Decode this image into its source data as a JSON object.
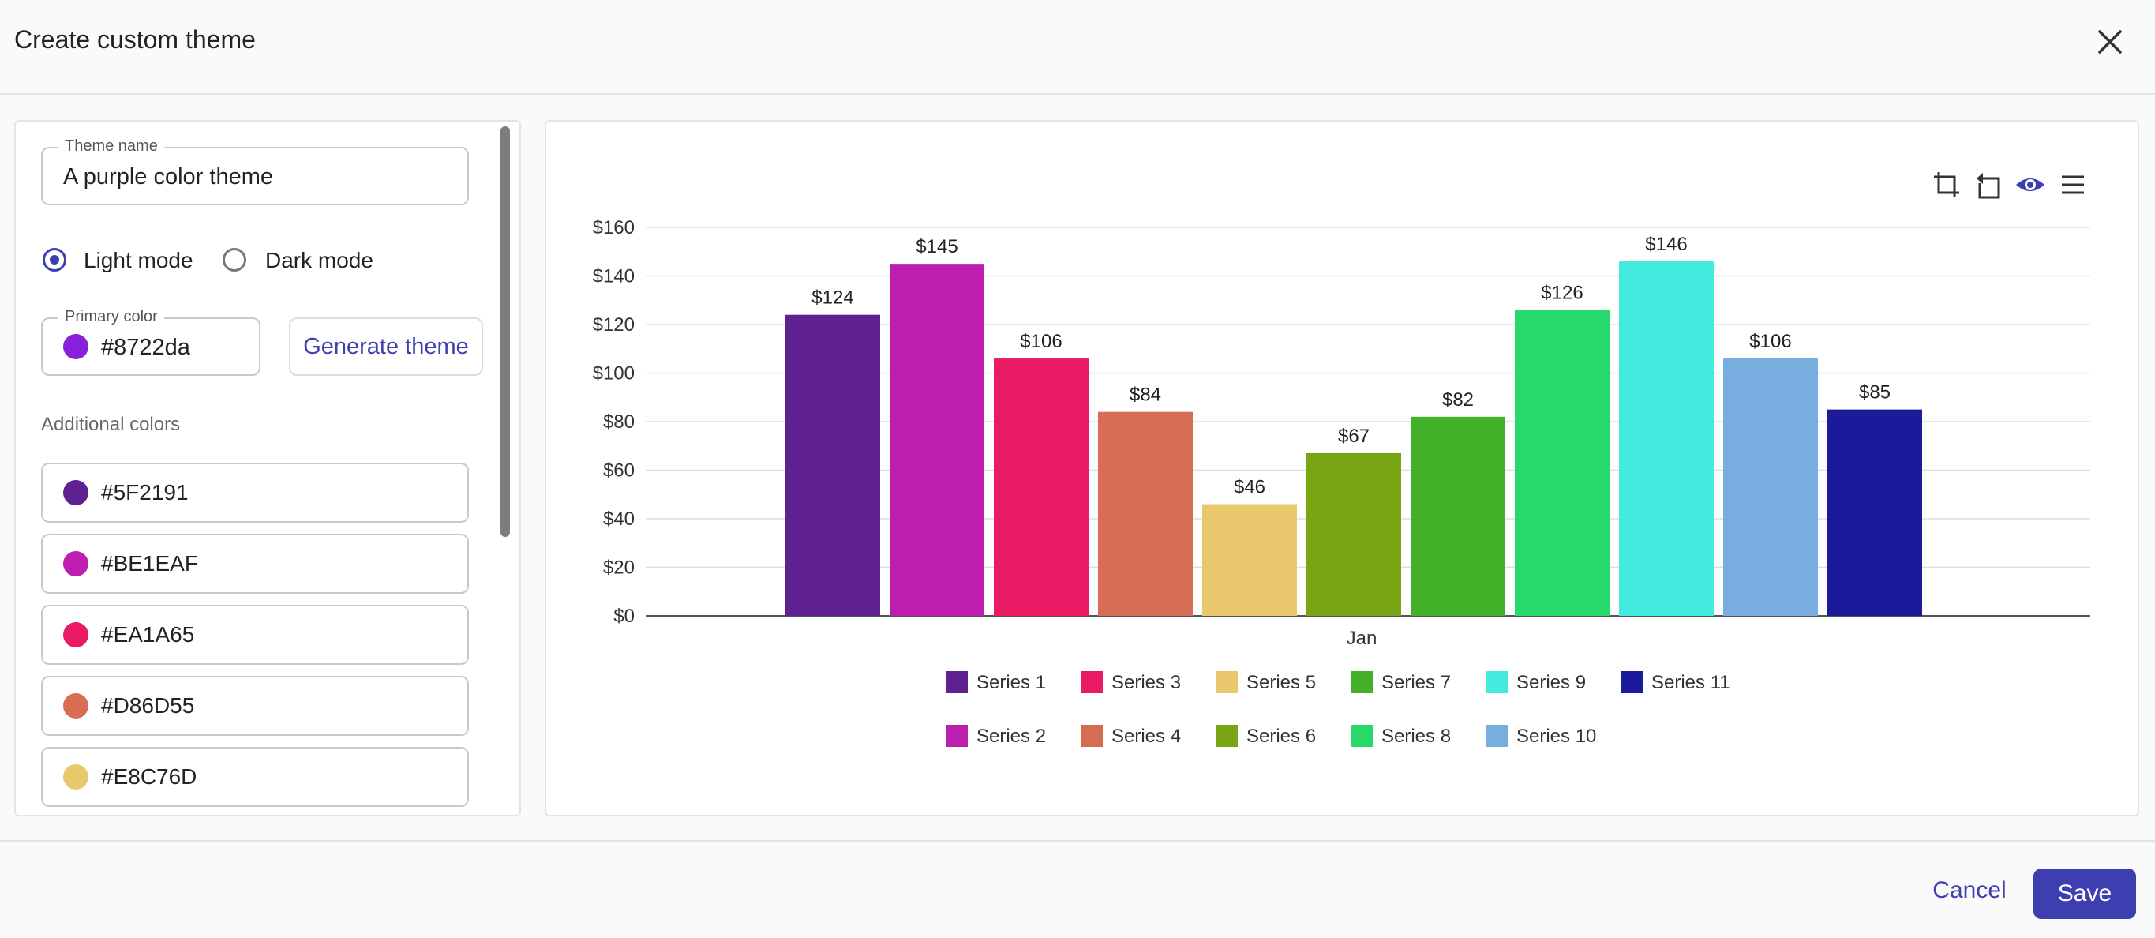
{
  "dialog": {
    "title": "Create custom theme",
    "close_icon": "close-icon"
  },
  "form": {
    "theme_name_label": "Theme name",
    "theme_name_value": "A purple color theme",
    "modes": [
      {
        "label": "Light mode",
        "checked": true
      },
      {
        "label": "Dark mode",
        "checked": false
      }
    ],
    "primary_color_label": "Primary color",
    "primary_color_value": "#8722da",
    "generate_button": "Generate theme",
    "additional_colors_label": "Additional colors",
    "additional_colors": [
      "#5F2191",
      "#BE1EAF",
      "#EA1A65",
      "#D86D55",
      "#E8C76D"
    ]
  },
  "toolbar": {
    "icons": [
      "crop-icon",
      "rotate-icon",
      "eye-icon",
      "menu-icon"
    ]
  },
  "chart_data": {
    "type": "bar",
    "categories": [
      "Jan"
    ],
    "series": [
      {
        "name": "Series 1",
        "values": [
          124
        ],
        "color": "#5F2191"
      },
      {
        "name": "Series 2",
        "values": [
          145
        ],
        "color": "#BE1EAF"
      },
      {
        "name": "Series 3",
        "values": [
          106
        ],
        "color": "#EA1A65"
      },
      {
        "name": "Series 4",
        "values": [
          84
        ],
        "color": "#D86D55"
      },
      {
        "name": "Series 5",
        "values": [
          46
        ],
        "color": "#E8C76D"
      },
      {
        "name": "Series 6",
        "values": [
          67
        ],
        "color": "#7AA512"
      },
      {
        "name": "Series 7",
        "values": [
          82
        ],
        "color": "#43B02A"
      },
      {
        "name": "Series 8",
        "values": [
          126
        ],
        "color": "#27D86A"
      },
      {
        "name": "Series 9",
        "values": [
          146
        ],
        "color": "#43EBDE"
      },
      {
        "name": "Series 10",
        "values": [
          106
        ],
        "color": "#78ADE0"
      },
      {
        "name": "Series 11",
        "values": [
          85
        ],
        "color": "#1A1A9A"
      }
    ],
    "value_prefix": "$",
    "y_ticks": [
      0,
      20,
      40,
      60,
      80,
      100,
      120,
      140,
      160
    ],
    "ylim": [
      0,
      160
    ],
    "grid": true,
    "legend_position": "bottom"
  },
  "actions": {
    "cancel": "Cancel",
    "save": "Save"
  }
}
